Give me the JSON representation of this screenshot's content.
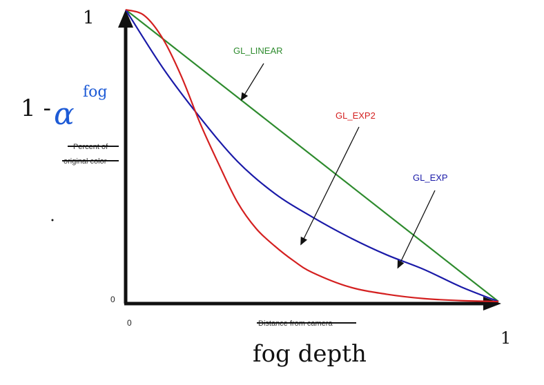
{
  "chart_data": {
    "type": "line",
    "xlim": [
      0,
      1
    ],
    "ylim": [
      0,
      1
    ],
    "ylabel": "Percent of original color",
    "xlabel": "Distance from camera",
    "x_ticks": [
      "0"
    ],
    "y_ticks": [
      "0"
    ],
    "series": [
      {
        "name": "GL_LINEAR",
        "color": "#2e8b2e",
        "x": [
          0,
          0.1,
          0.2,
          0.3,
          0.4,
          0.5,
          0.6,
          0.7,
          0.8,
          0.9,
          1.0
        ],
        "y": [
          1.0,
          0.9,
          0.8,
          0.7,
          0.6,
          0.5,
          0.4,
          0.3,
          0.2,
          0.1,
          0.0
        ]
      },
      {
        "name": "GL_EXP",
        "color": "#1a1aa8",
        "x": [
          0,
          0.1,
          0.2,
          0.3,
          0.4,
          0.5,
          0.6,
          0.7,
          0.8,
          0.9,
          1.0
        ],
        "y": [
          1.0,
          0.8,
          0.63,
          0.48,
          0.37,
          0.29,
          0.22,
          0.16,
          0.11,
          0.05,
          0.0
        ]
      },
      {
        "name": "GL_EXP2",
        "color": "#d42020",
        "x": [
          0,
          0.05,
          0.1,
          0.15,
          0.2,
          0.25,
          0.3,
          0.35,
          0.4,
          0.45,
          0.5,
          0.6,
          0.7,
          0.8,
          0.9,
          1.0
        ],
        "y": [
          1.0,
          0.98,
          0.9,
          0.77,
          0.61,
          0.47,
          0.34,
          0.25,
          0.19,
          0.14,
          0.1,
          0.05,
          0.025,
          0.01,
          0.003,
          0.0
        ]
      }
    ],
    "annotations": [
      {
        "text": "GL_LINEAR",
        "series": "GL_LINEAR",
        "points_to": [
          0.31,
          0.69
        ]
      },
      {
        "text": "GL_EXP2",
        "series": "GL_EXP2",
        "points_to": [
          0.47,
          0.195
        ]
      },
      {
        "text": "GL_EXP",
        "series": "GL_EXP",
        "points_to": [
          0.73,
          0.115
        ]
      }
    ],
    "handwritten": {
      "y_top": "1",
      "x_end": "1",
      "ylabel_math_prefix": "1 -",
      "ylabel_math_alpha": "α",
      "ylabel_math_sup": "fog",
      "xlabel": "fog depth"
    }
  }
}
